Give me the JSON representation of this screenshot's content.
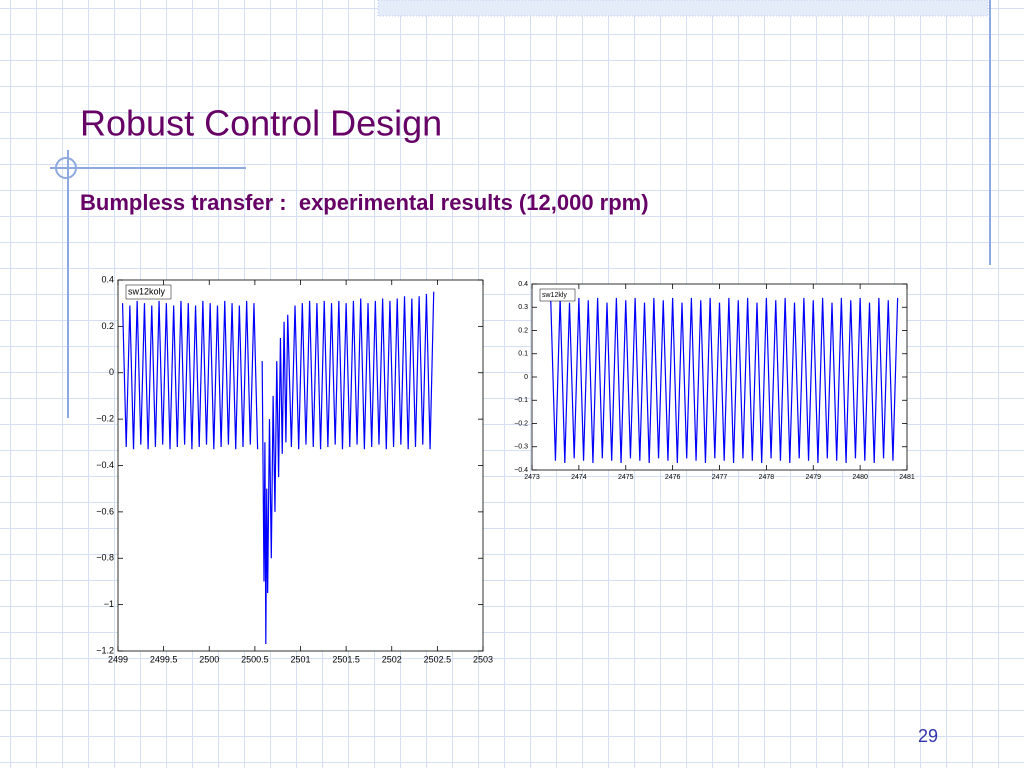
{
  "slide": {
    "title": "Robust Control Design",
    "subtitle": "Bumpless transfer :  experimental results (12,000 rpm)",
    "page_number": "29"
  },
  "chart_data": [
    {
      "type": "line",
      "x": [
        2499.05,
        2499.09,
        2499.13,
        2499.17,
        2499.21,
        2499.25,
        2499.29,
        2499.33,
        2499.37,
        2499.41,
        2499.45,
        2499.49,
        2499.53,
        2499.57,
        2499.61,
        2499.65,
        2499.69,
        2499.73,
        2499.77,
        2499.81,
        2499.85,
        2499.89,
        2499.93,
        2499.97,
        2500.01,
        2500.05,
        2500.09,
        2500.13,
        2500.17,
        2500.21,
        2500.25,
        2500.29,
        2500.33,
        2500.37,
        2500.41,
        2500.45,
        2500.49,
        2500.53,
        2500.555,
        2500.58,
        2500.6,
        2500.61,
        2500.62,
        2500.63,
        2500.64,
        2500.66,
        2500.68,
        2500.7,
        2500.72,
        2500.74,
        2500.76,
        2500.78,
        2500.8,
        2500.82,
        2500.84,
        2500.86,
        2500.9,
        2500.94,
        2500.98,
        2501.02,
        2501.06,
        2501.1,
        2501.14,
        2501.18,
        2501.22,
        2501.26,
        2501.3,
        2501.34,
        2501.38,
        2501.42,
        2501.46,
        2501.5,
        2501.54,
        2501.58,
        2501.62,
        2501.66,
        2501.7,
        2501.74,
        2501.78,
        2501.82,
        2501.86,
        2501.9,
        2501.94,
        2501.98,
        2502.02,
        2502.06,
        2502.1,
        2502.14,
        2502.18,
        2502.22,
        2502.26,
        2502.3,
        2502.34,
        2502.38,
        2502.42,
        2502.46
      ],
      "series": [
        {
          "name": "sw12koly",
          "color": "#0000ff",
          "values": [
            0.3,
            -0.32,
            0.29,
            -0.33,
            0.31,
            -0.31,
            0.3,
            -0.33,
            0.29,
            -0.32,
            0.31,
            -0.31,
            0.3,
            -0.33,
            0.29,
            -0.32,
            0.31,
            -0.31,
            0.3,
            -0.33,
            0.29,
            -0.32,
            0.31,
            -0.31,
            0.3,
            -0.33,
            0.29,
            -0.32,
            0.31,
            -0.31,
            0.3,
            -0.33,
            0.29,
            -0.32,
            0.31,
            -0.31,
            0.3,
            -0.33,
            null,
            0.05,
            -0.9,
            -0.3,
            -1.17,
            -0.5,
            -0.95,
            -0.2,
            -0.8,
            -0.1,
            -0.6,
            0.05,
            -0.45,
            0.15,
            -0.35,
            0.22,
            -0.3,
            0.25,
            -0.32,
            0.29,
            -0.33,
            0.3,
            -0.31,
            0.31,
            -0.32,
            0.3,
            -0.33,
            0.31,
            -0.32,
            0.3,
            -0.31,
            0.31,
            -0.33,
            0.3,
            -0.32,
            0.31,
            -0.31,
            0.32,
            -0.33,
            0.3,
            -0.32,
            0.31,
            -0.31,
            0.32,
            -0.33,
            0.31,
            -0.32,
            0.32,
            -0.31,
            0.33,
            -0.33,
            0.32,
            -0.32,
            0.33,
            -0.31,
            0.34,
            -0.33,
            0.35
          ]
        }
      ],
      "xlim": [
        2499,
        2503
      ],
      "ylim": [
        -1.2,
        0.4
      ],
      "xticks": [
        2499,
        2499.5,
        2500,
        2500.5,
        2501,
        2501.5,
        2502,
        2502.5,
        2503
      ],
      "yticks": [
        {
          "value": -1.2,
          "label": "−1.2"
        },
        {
          "value": -1,
          "label": "−1"
        },
        {
          "value": -0.8,
          "label": "−0.8"
        },
        {
          "value": -0.6,
          "label": "−0.6"
        },
        {
          "value": -0.4,
          "label": "−0.4"
        },
        {
          "value": -0.2,
          "label": "−0.2"
        },
        0,
        0.2,
        0.4
      ]
    },
    {
      "type": "line",
      "x": [
        2473.4,
        2473.5,
        2473.6,
        2473.7,
        2473.8,
        2473.9,
        2474,
        2474.1,
        2474.2,
        2474.3,
        2474.4,
        2474.5,
        2474.6,
        2474.7,
        2474.8,
        2474.9,
        2475,
        2475.1,
        2475.2,
        2475.3,
        2475.4,
        2475.5,
        2475.6,
        2475.7,
        2475.8,
        2475.9,
        2476,
        2476.1,
        2476.2,
        2476.3,
        2476.4,
        2476.5,
        2476.6,
        2476.7,
        2476.8,
        2476.9,
        2477,
        2477.1,
        2477.2,
        2477.3,
        2477.4,
        2477.5,
        2477.6,
        2477.7,
        2477.8,
        2477.9,
        2478,
        2478.1,
        2478.2,
        2478.3,
        2478.4,
        2478.5,
        2478.6,
        2478.7,
        2478.8,
        2478.9,
        2479,
        2479.1,
        2479.2,
        2479.3,
        2479.4,
        2479.5,
        2479.6,
        2479.7,
        2479.8,
        2479.9,
        2480,
        2480.1,
        2480.2,
        2480.3,
        2480.4,
        2480.5,
        2480.6,
        2480.7,
        2480.8
      ],
      "series": [
        {
          "name": "sw12kly",
          "color": "#0000ff",
          "values": [
            0.33,
            -0.36,
            0.34,
            -0.37,
            0.32,
            -0.35,
            0.34,
            -0.36,
            0.33,
            -0.37,
            0.34,
            -0.35,
            0.32,
            -0.36,
            0.34,
            -0.37,
            0.33,
            -0.35,
            0.34,
            -0.36,
            0.32,
            -0.37,
            0.34,
            -0.35,
            0.33,
            -0.36,
            0.34,
            -0.37,
            0.32,
            -0.35,
            0.34,
            -0.36,
            0.33,
            -0.37,
            0.34,
            -0.35,
            0.32,
            -0.36,
            0.34,
            -0.37,
            0.33,
            -0.35,
            0.34,
            -0.36,
            0.32,
            -0.37,
            0.34,
            -0.35,
            0.33,
            -0.36,
            0.34,
            -0.37,
            0.32,
            -0.35,
            0.34,
            -0.36,
            0.33,
            -0.37,
            0.34,
            -0.35,
            0.32,
            -0.36,
            0.34,
            -0.37,
            0.33,
            -0.35,
            0.34,
            -0.36,
            0.32,
            -0.37,
            0.34,
            -0.35,
            0.33,
            -0.36,
            0.34
          ]
        }
      ],
      "xlim": [
        2473,
        2481
      ],
      "ylim": [
        -0.4,
        0.4
      ],
      "xticks": [
        2473,
        2474,
        2475,
        2476,
        2477,
        2478,
        2479,
        2480,
        2481
      ],
      "yticks": [
        {
          "value": -0.4,
          "label": "−0.4"
        },
        {
          "value": -0.3,
          "label": "−0.3"
        },
        {
          "value": -0.2,
          "label": "−0.2"
        },
        {
          "value": -0.1,
          "label": "−0.1"
        },
        0,
        0.1,
        0.2,
        0.3,
        0.4
      ]
    }
  ]
}
